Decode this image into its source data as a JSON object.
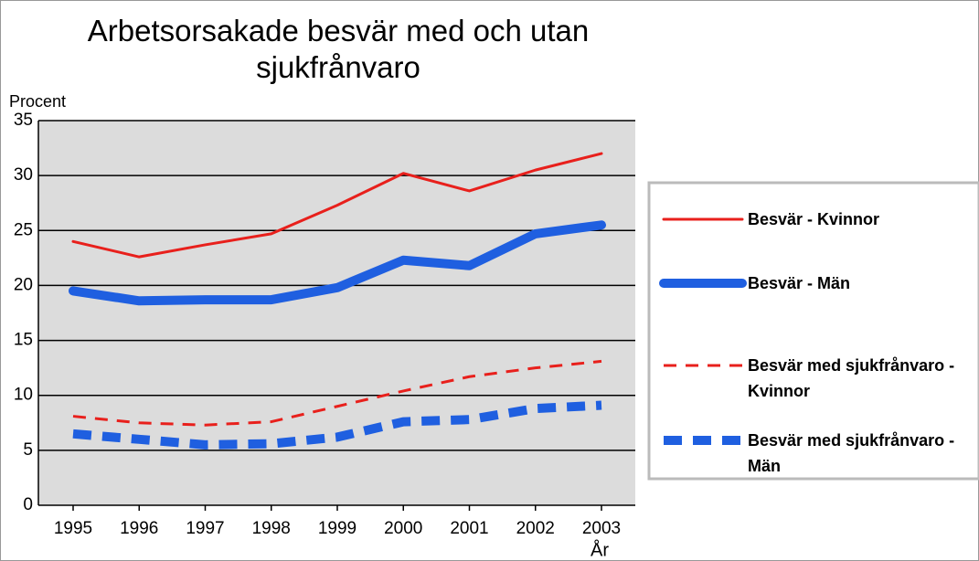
{
  "chart_data": {
    "type": "line",
    "title": "Arbetsorsakade besvär med och utan sjukfrånvaro",
    "y_label": "Procent",
    "x_label": "År",
    "categories": [
      "1995",
      "1996",
      "1997",
      "1998",
      "1999",
      "2000",
      "2001",
      "2002",
      "2003"
    ],
    "series": [
      {
        "name": "Besvär - Kvinnor",
        "color": "#e8201c",
        "line_style": "solid",
        "values": [
          24.0,
          22.6,
          23.7,
          24.7,
          27.3,
          30.2,
          28.6,
          30.5,
          32.0
        ]
      },
      {
        "name": "Besvär - Män",
        "color": "#1f5fe0",
        "line_style": "solid",
        "values": [
          19.5,
          18.6,
          18.7,
          18.7,
          19.8,
          22.3,
          21.8,
          24.7,
          25.5
        ]
      },
      {
        "name": "Besvär med sjukfrånvaro - Kvinnor",
        "color": "#e8201c",
        "line_style": "dashed",
        "values": [
          8.1,
          7.5,
          7.3,
          7.6,
          9.0,
          10.4,
          11.7,
          12.5,
          13.1
        ]
      },
      {
        "name": "Besvär med sjukfrånvaro - Män",
        "color": "#1f5fe0",
        "line_style": "dashed",
        "values": [
          6.5,
          6.0,
          5.5,
          5.6,
          6.2,
          7.6,
          7.8,
          8.8,
          9.1
        ]
      }
    ],
    "ylim": [
      0,
      35
    ],
    "yticks": [
      0,
      5,
      10,
      15,
      20,
      25,
      30,
      35
    ],
    "grid": true,
    "legend": "right"
  }
}
